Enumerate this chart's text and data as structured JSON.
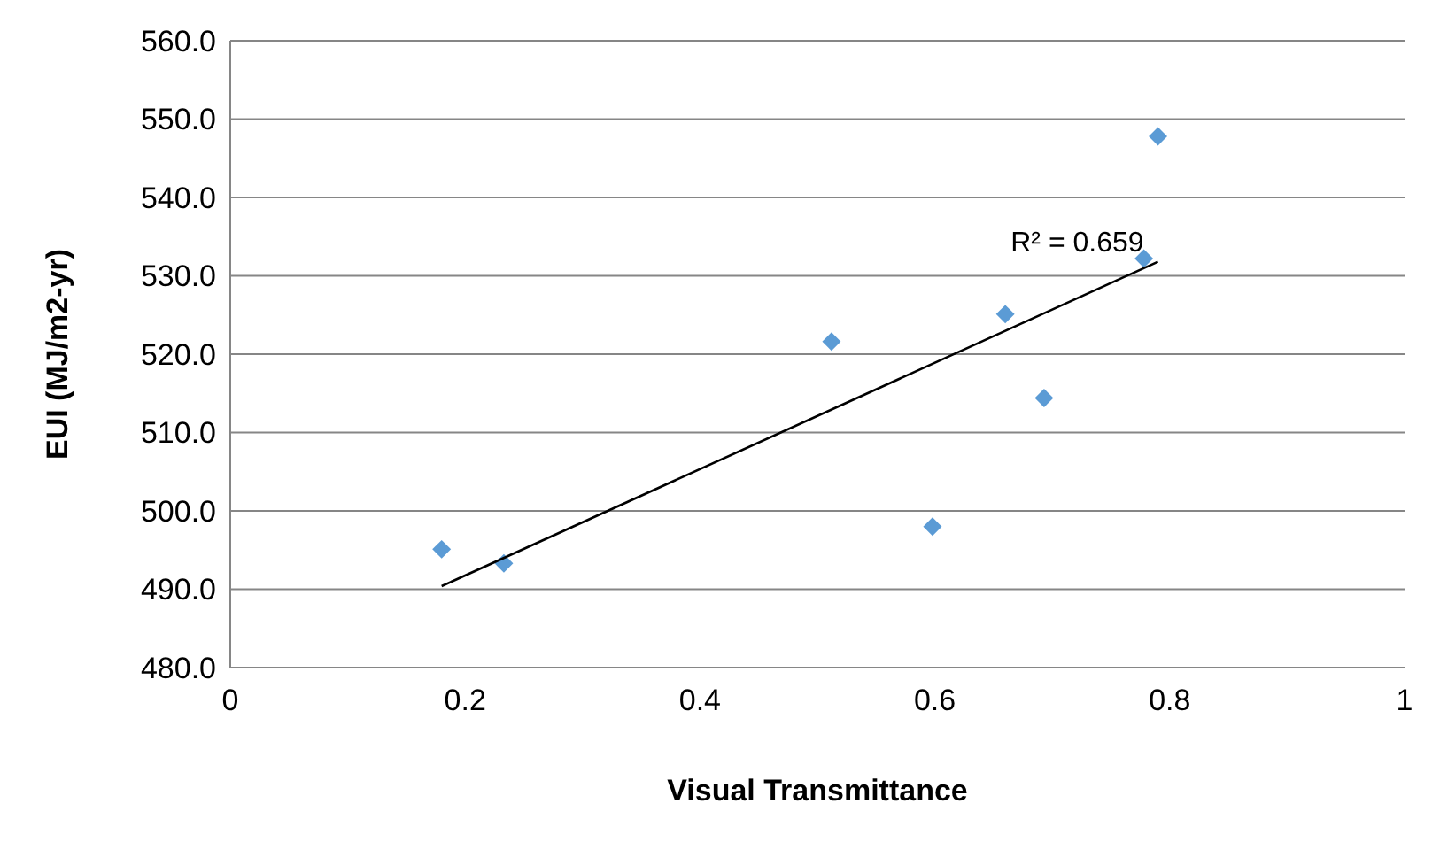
{
  "chart_data": {
    "type": "scatter",
    "xlabel": "Visual Transmittance",
    "ylabel": "EUI (MJ/m2-yr)",
    "xlim": [
      0,
      1
    ],
    "xticks": [
      0,
      0.2,
      0.4,
      0.6,
      0.8,
      1
    ],
    "ylim": [
      480,
      560
    ],
    "yticks": [
      {
        "value": 480,
        "label": "480.0"
      },
      {
        "value": 490,
        "label": "490.0"
      },
      {
        "value": 500,
        "label": "500.0"
      },
      {
        "value": 510,
        "label": "510.0"
      },
      {
        "value": 520,
        "label": "520.0"
      },
      {
        "value": 530,
        "label": "530.0"
      },
      {
        "value": 540,
        "label": "540.0"
      },
      {
        "value": 550,
        "label": "550.0"
      },
      {
        "value": 560,
        "label": "560.0"
      }
    ],
    "grid": "y",
    "marker": "diamond",
    "series": [
      {
        "color": "#5b9bd5",
        "x": [
          0.18,
          0.233,
          0.512,
          0.598,
          0.66,
          0.693,
          0.778,
          0.79
        ],
        "values": [
          495.1,
          493.3,
          521.6,
          498,
          525.1,
          514.4,
          532.2,
          547.8
        ]
      },
      {
        "type": "line",
        "color": "#000000",
        "marker": "none",
        "line_style": "solid",
        "x": [
          0.18,
          0.79
        ],
        "values": [
          490.4,
          531.8
        ]
      }
    ],
    "annotations": [
      "R² = 0.659"
    ]
  }
}
